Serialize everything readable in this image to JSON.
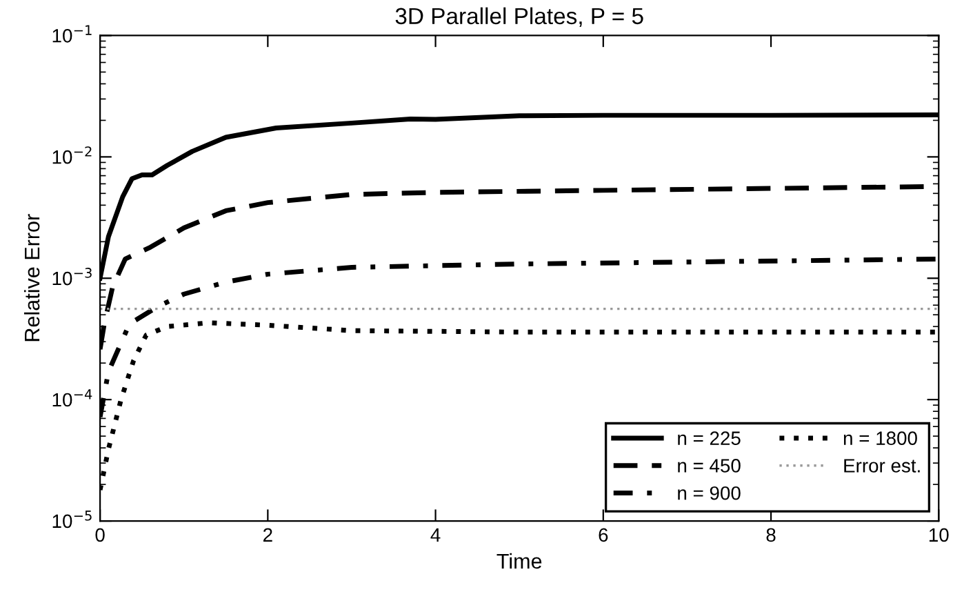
{
  "chart_data": {
    "type": "line",
    "title": "3D Parallel Plates, P = 5",
    "xlabel": "Time",
    "ylabel": "Relative Error",
    "log": "y",
    "xlim": [
      0,
      10
    ],
    "xticks": [
      0,
      2,
      4,
      6,
      8,
      10
    ],
    "ylim": [
      1e-05,
      0.1
    ],
    "yticks": [
      {
        "value": 1e-05,
        "label": "10$^{−5}$"
      },
      {
        "value": 0.0001,
        "label": "10$^{−4}$"
      },
      {
        "value": 0.001,
        "label": "10$^{−3}$"
      },
      {
        "value": 0.01,
        "label": "10$^{−2}$"
      },
      {
        "value": 0.1,
        "label": "10$^{−1}$"
      }
    ],
    "grid": false,
    "legend": "bottom right",
    "marker": "none",
    "series": [
      {
        "name": "n = 225",
        "color": "#000000",
        "line_style": "solid",
        "x": [
          0,
          0.1,
          0.27,
          0.38,
          0.5,
          0.62,
          0.8,
          1.1,
          1.5,
          2.1,
          3,
          3.7,
          4,
          5,
          6,
          8,
          10
        ],
        "values": [
          0.001,
          0.0022,
          0.0047,
          0.0066,
          0.0071,
          0.0071,
          0.0085,
          0.0111,
          0.0145,
          0.0173,
          0.019,
          0.0205,
          0.0204,
          0.0218,
          0.022,
          0.022,
          0.0222
        ]
      },
      {
        "name": "n = 450",
        "color": "#000000",
        "line_style": "dashed",
        "x": [
          0,
          0.05,
          0.15,
          0.3,
          0.6,
          1,
          1.5,
          2,
          3,
          4,
          6,
          10
        ],
        "values": [
          0.00026,
          0.00042,
          0.00085,
          0.00144,
          0.0018,
          0.0026,
          0.0036,
          0.0042,
          0.0049,
          0.0051,
          0.0053,
          0.0057
        ]
      },
      {
        "name": "n = 900",
        "color": "#000000",
        "line_style": "dashdot",
        "x": [
          0,
          0.1,
          0.35,
          0.7,
          1,
          1.5,
          2,
          3,
          5,
          10
        ],
        "values": [
          7.2e-05,
          0.00017,
          0.00042,
          0.00059,
          0.00074,
          0.00093,
          0.00108,
          0.00123,
          0.00131,
          0.00144
        ]
      },
      {
        "name": "n = 1800",
        "color": "#000000",
        "line_style": "dotted",
        "x": [
          0,
          0.1,
          0.25,
          0.4,
          0.55,
          0.8,
          1.3,
          2,
          3,
          5,
          10
        ],
        "values": [
          1.8e-05,
          3.9e-05,
          0.0001,
          0.00021,
          0.00034,
          0.0004,
          0.00043,
          0.00041,
          0.00037,
          0.00036,
          0.00036
        ]
      },
      {
        "name": "Error est.",
        "color": "#999999",
        "line_style": "dotted",
        "x": [
          0,
          10
        ],
        "values": [
          0.00056,
          0.00056
        ]
      }
    ]
  }
}
